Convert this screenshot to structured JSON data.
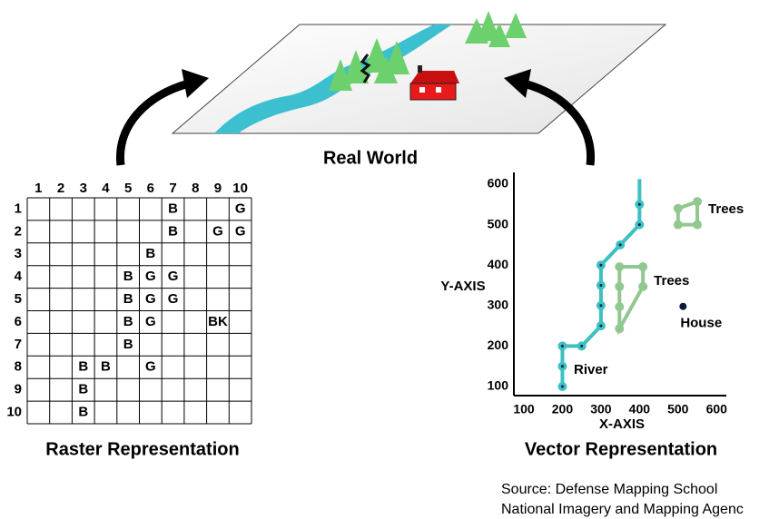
{
  "title": "Real World",
  "raster": {
    "caption": "Raster Representation",
    "col_labels": [
      1,
      2,
      3,
      4,
      5,
      6,
      7,
      8,
      9,
      10
    ],
    "row_labels": [
      1,
      2,
      3,
      4,
      5,
      6,
      7,
      8,
      9,
      10
    ],
    "rows": [
      [
        null,
        null,
        null,
        null,
        null,
        null,
        "B",
        null,
        null,
        "G"
      ],
      [
        null,
        null,
        null,
        null,
        null,
        null,
        "B",
        null,
        "G",
        "G"
      ],
      [
        null,
        null,
        null,
        null,
        null,
        "B",
        null,
        null,
        null,
        null
      ],
      [
        null,
        null,
        null,
        null,
        "B",
        "G",
        "G",
        null,
        null,
        null
      ],
      [
        null,
        null,
        null,
        null,
        "B",
        "G",
        "G",
        null,
        null,
        null
      ],
      [
        null,
        null,
        null,
        null,
        "B",
        "G",
        null,
        null,
        "BK",
        null
      ],
      [
        null,
        null,
        null,
        null,
        "B",
        null,
        null,
        null,
        null,
        null
      ],
      [
        null,
        null,
        "B",
        "B",
        null,
        "G",
        null,
        null,
        null,
        null
      ],
      [
        null,
        null,
        "B",
        null,
        null,
        null,
        null,
        null,
        null,
        null
      ],
      [
        null,
        null,
        "B",
        null,
        null,
        null,
        null,
        null,
        null,
        null
      ]
    ]
  },
  "vector": {
    "caption": "Vector Representation",
    "x_label": "X-AXIS",
    "y_label": "Y-AXIS",
    "xlim": [
      75,
      600
    ],
    "ylim": [
      78,
      615
    ],
    "xticks": [
      100,
      200,
      300,
      400,
      500,
      600
    ],
    "yticks": [
      100,
      200,
      300,
      400,
      500,
      600
    ],
    "river": {
      "name": "River",
      "color": "#3cc0c0",
      "x": [
        200,
        200,
        200,
        250,
        300,
        300,
        300,
        300,
        350,
        400,
        400,
        400
      ],
      "y": [
        100,
        150,
        200,
        200,
        250,
        300,
        350,
        400,
        450,
        500,
        550,
        613
      ]
    },
    "trees": [
      {
        "name": "Trees",
        "color": "#90c890",
        "x": [
          550,
          550,
          500,
          500
        ],
        "y": [
          557,
          500,
          500,
          540
        ]
      },
      {
        "name": "Trees",
        "color": "#90c890",
        "x": [
          348,
          409,
          409,
          348,
          348,
          348
        ],
        "y": [
          396,
          396,
          347,
          243,
          297,
          347
        ]
      }
    ],
    "house": {
      "name": "House",
      "color": "#0a1a3a",
      "x": 513,
      "y": 298
    }
  },
  "source": [
    "Source: Defense Mapping School",
    "National Imagery and Mapping Agenc"
  ]
}
